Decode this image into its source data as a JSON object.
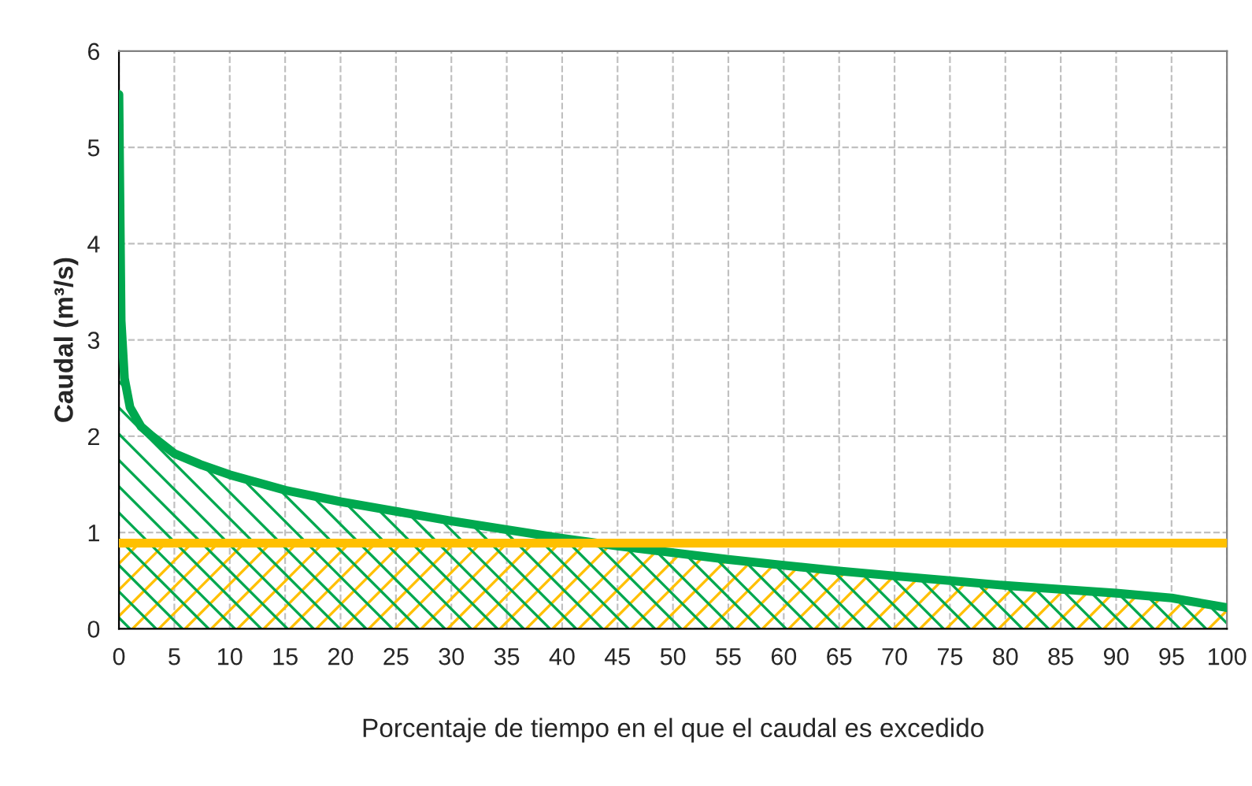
{
  "chart_data": {
    "type": "area",
    "xlabel": "Porcentaje de tiempo en el que el caudal es excedido",
    "ylabel": "Caudal (m³/s)",
    "x": [
      0,
      0.2,
      0.5,
      1,
      2,
      3,
      5,
      7.5,
      10,
      15,
      20,
      25,
      30,
      35,
      40,
      45,
      50,
      55,
      60,
      65,
      70,
      75,
      80,
      85,
      90,
      95,
      100
    ],
    "series": [
      {
        "color": "#00a84f",
        "values": [
          5.55,
          3.2,
          2.6,
          2.3,
          2.1,
          2.0,
          1.82,
          1.7,
          1.6,
          1.44,
          1.32,
          1.22,
          1.12,
          1.03,
          0.94,
          0.86,
          0.79,
          0.72,
          0.66,
          0.6,
          0.55,
          0.5,
          0.45,
          0.41,
          0.37,
          0.32,
          0.22
        ]
      }
    ],
    "ref_lines": [
      {
        "axis": "y",
        "value": 0.89,
        "color": "#ffc000"
      }
    ],
    "bands": [
      {
        "axis": "y",
        "from": 0,
        "to": 0.89,
        "color": "#ffc000"
      }
    ],
    "xlim": [
      0,
      100
    ],
    "xticks": [
      0,
      5,
      10,
      15,
      20,
      25,
      30,
      35,
      40,
      45,
      50,
      55,
      60,
      65,
      70,
      75,
      80,
      85,
      90,
      95,
      100
    ],
    "ylim": [
      0,
      6
    ],
    "yticks": [
      0,
      1,
      2,
      3,
      4,
      5,
      6
    ],
    "grid": true,
    "legend": false
  }
}
